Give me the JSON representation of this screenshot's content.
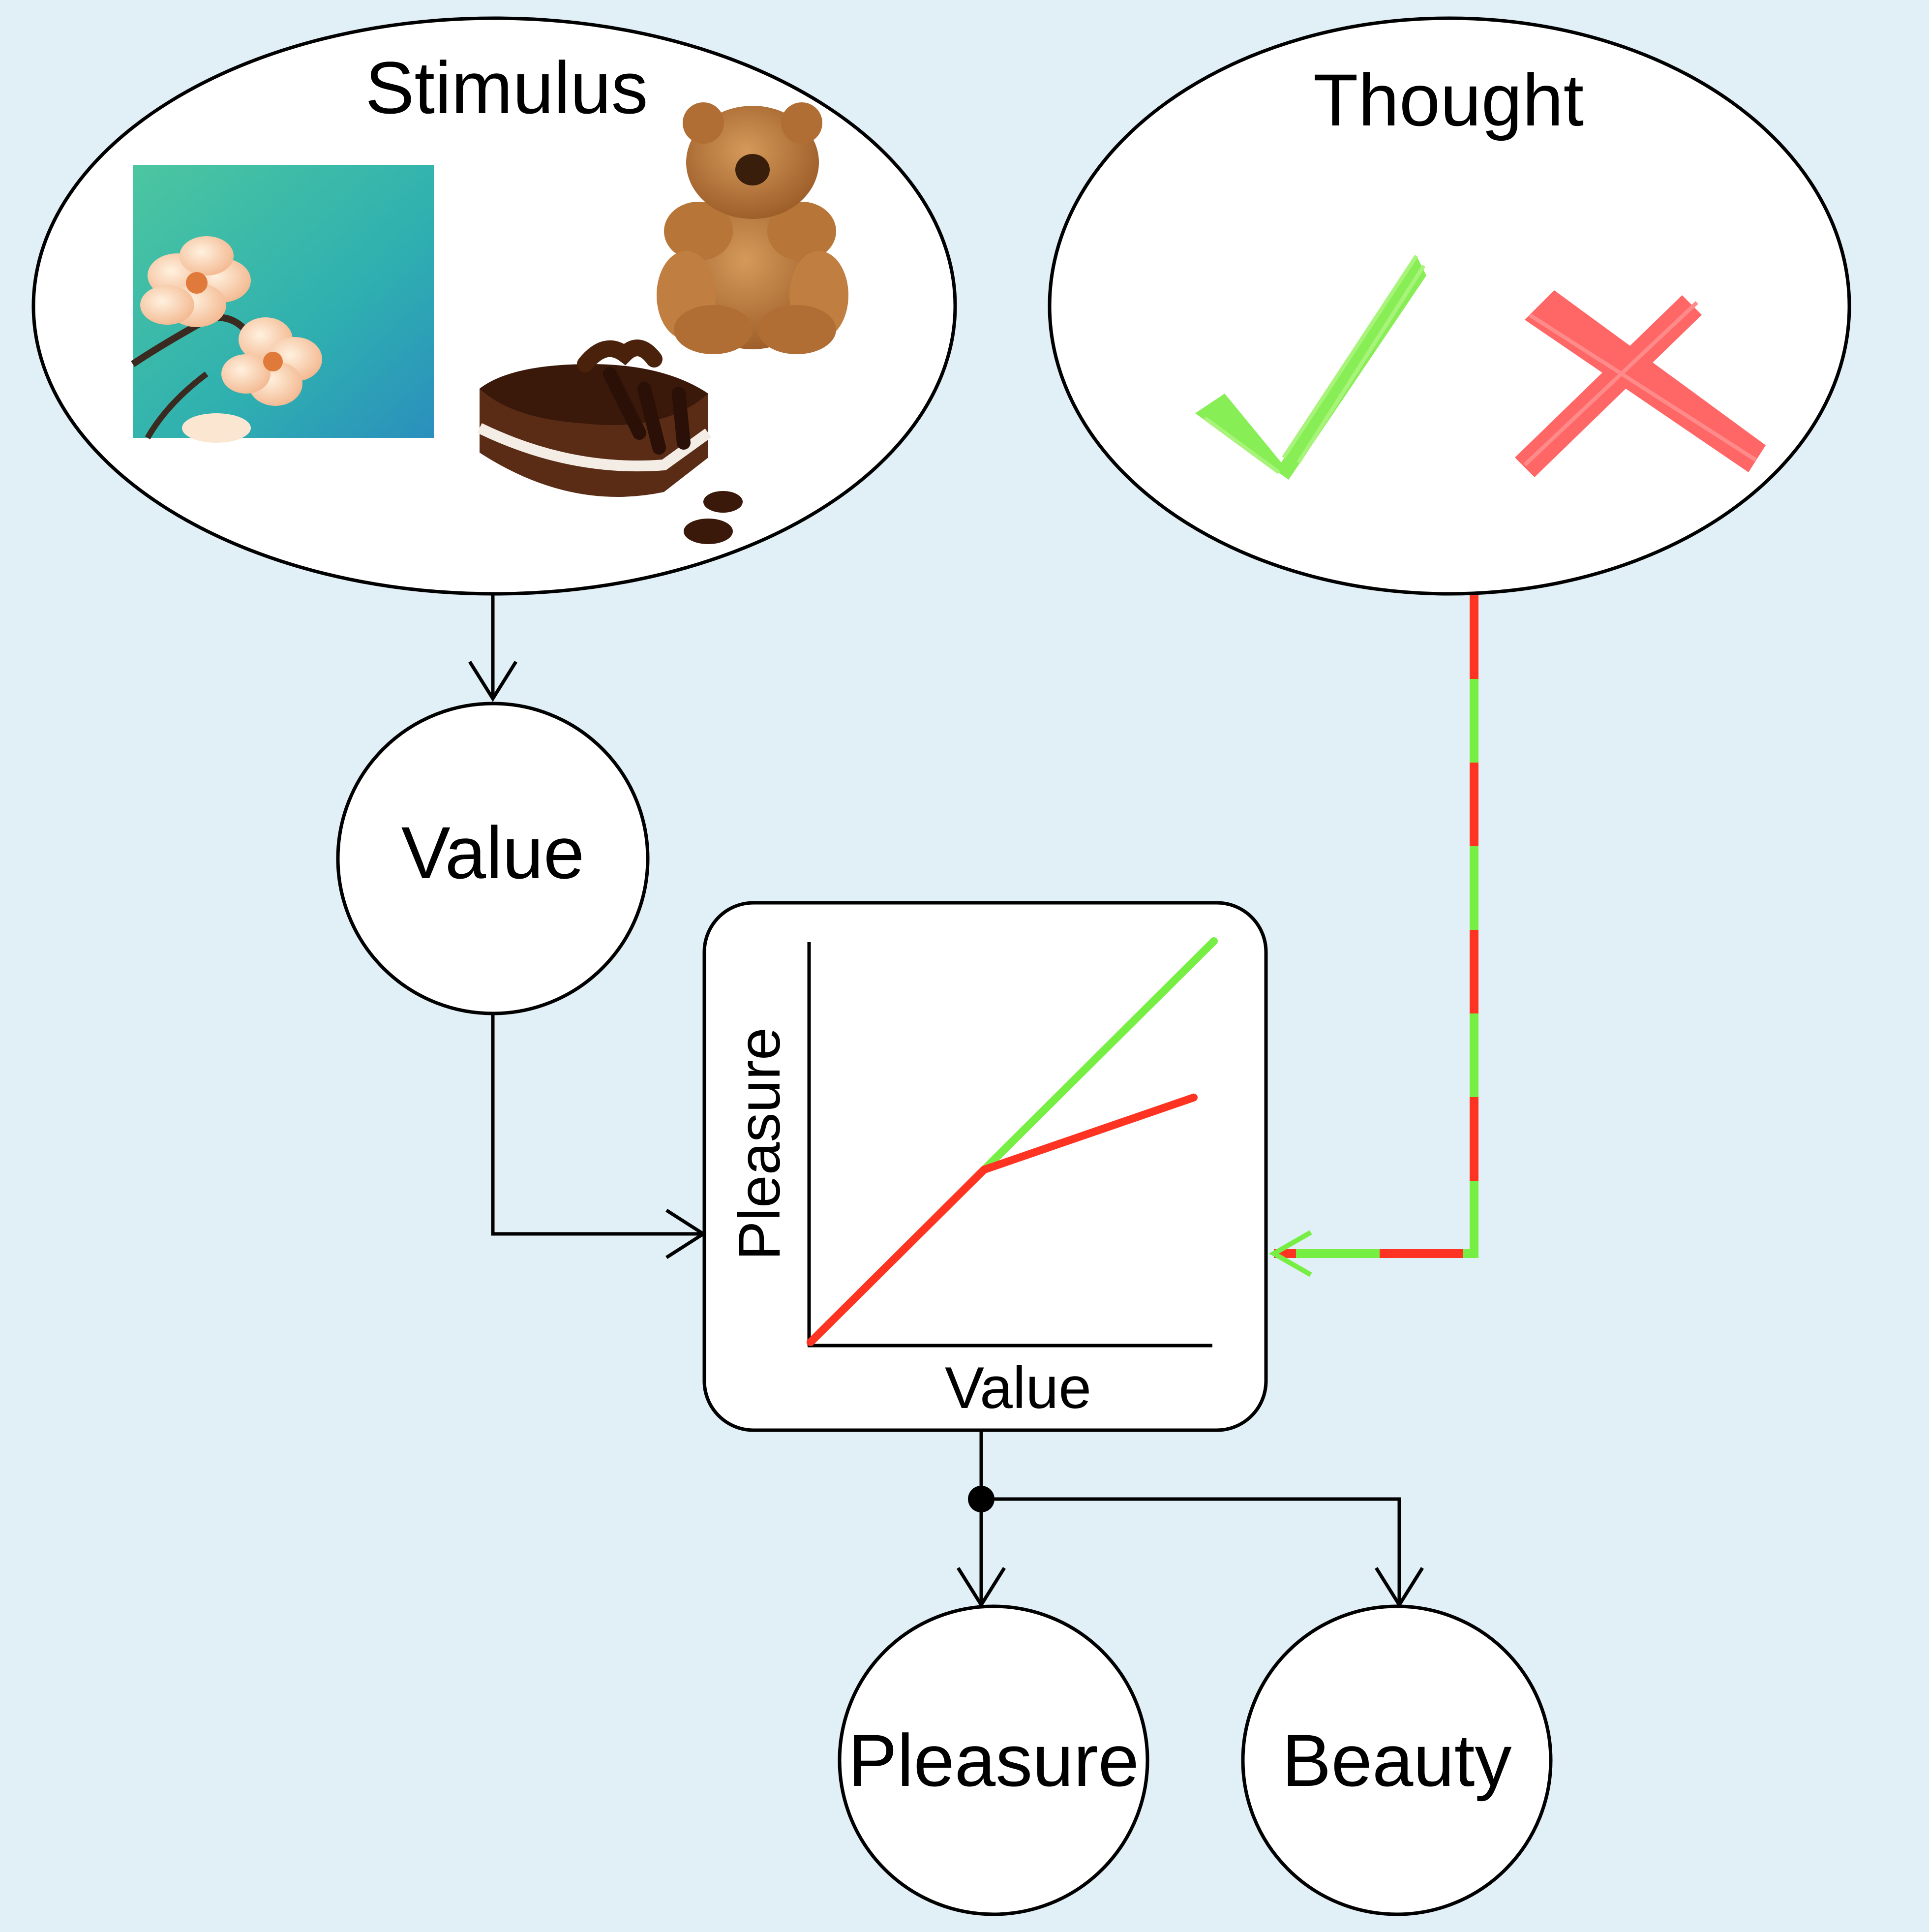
{
  "colors": {
    "background": "#e1eff6",
    "stroke": "#000000",
    "node_fill": "#ffffff",
    "accept_green": "#77ee44",
    "reject_red": "#ff3322",
    "check_icon": "#88ee55",
    "cross_icon": "#ff6666"
  },
  "nodes": {
    "stimulus": {
      "label": "Stimulus",
      "items": [
        "flower-photo",
        "teddy-bear-icon",
        "chocolate-cake-icon"
      ]
    },
    "thought": {
      "label": "Thought",
      "items": [
        "checkmark-icon",
        "cross-icon"
      ]
    },
    "value": {
      "label": "Value"
    },
    "pleasure": {
      "label": "Pleasure"
    },
    "beauty": {
      "label": "Beauty"
    }
  },
  "transform_box": {
    "y_axis_label": "Pleasure",
    "x_axis_label": "Value",
    "chart_data": {
      "type": "line",
      "title": "",
      "xlabel": "Value",
      "ylabel": "Pleasure",
      "note": "schematic; no tick values printed",
      "series": [
        {
          "color": "#77ee44",
          "points": [
            [
              0,
              0
            ],
            [
              1,
              1
            ]
          ]
        },
        {
          "color": "#ff3322",
          "points": [
            [
              0,
              0
            ],
            [
              0.43,
              0.43
            ],
            [
              0.95,
              0.61
            ]
          ]
        }
      ]
    }
  },
  "edges": [
    {
      "from": "stimulus",
      "to": "value"
    },
    {
      "from": "value",
      "to": "transform_box"
    },
    {
      "from": "thought",
      "to": "transform_box",
      "style": "dashed red/green"
    },
    {
      "from": "transform_box",
      "to": "pleasure"
    },
    {
      "from": "transform_box",
      "to": "beauty"
    }
  ]
}
